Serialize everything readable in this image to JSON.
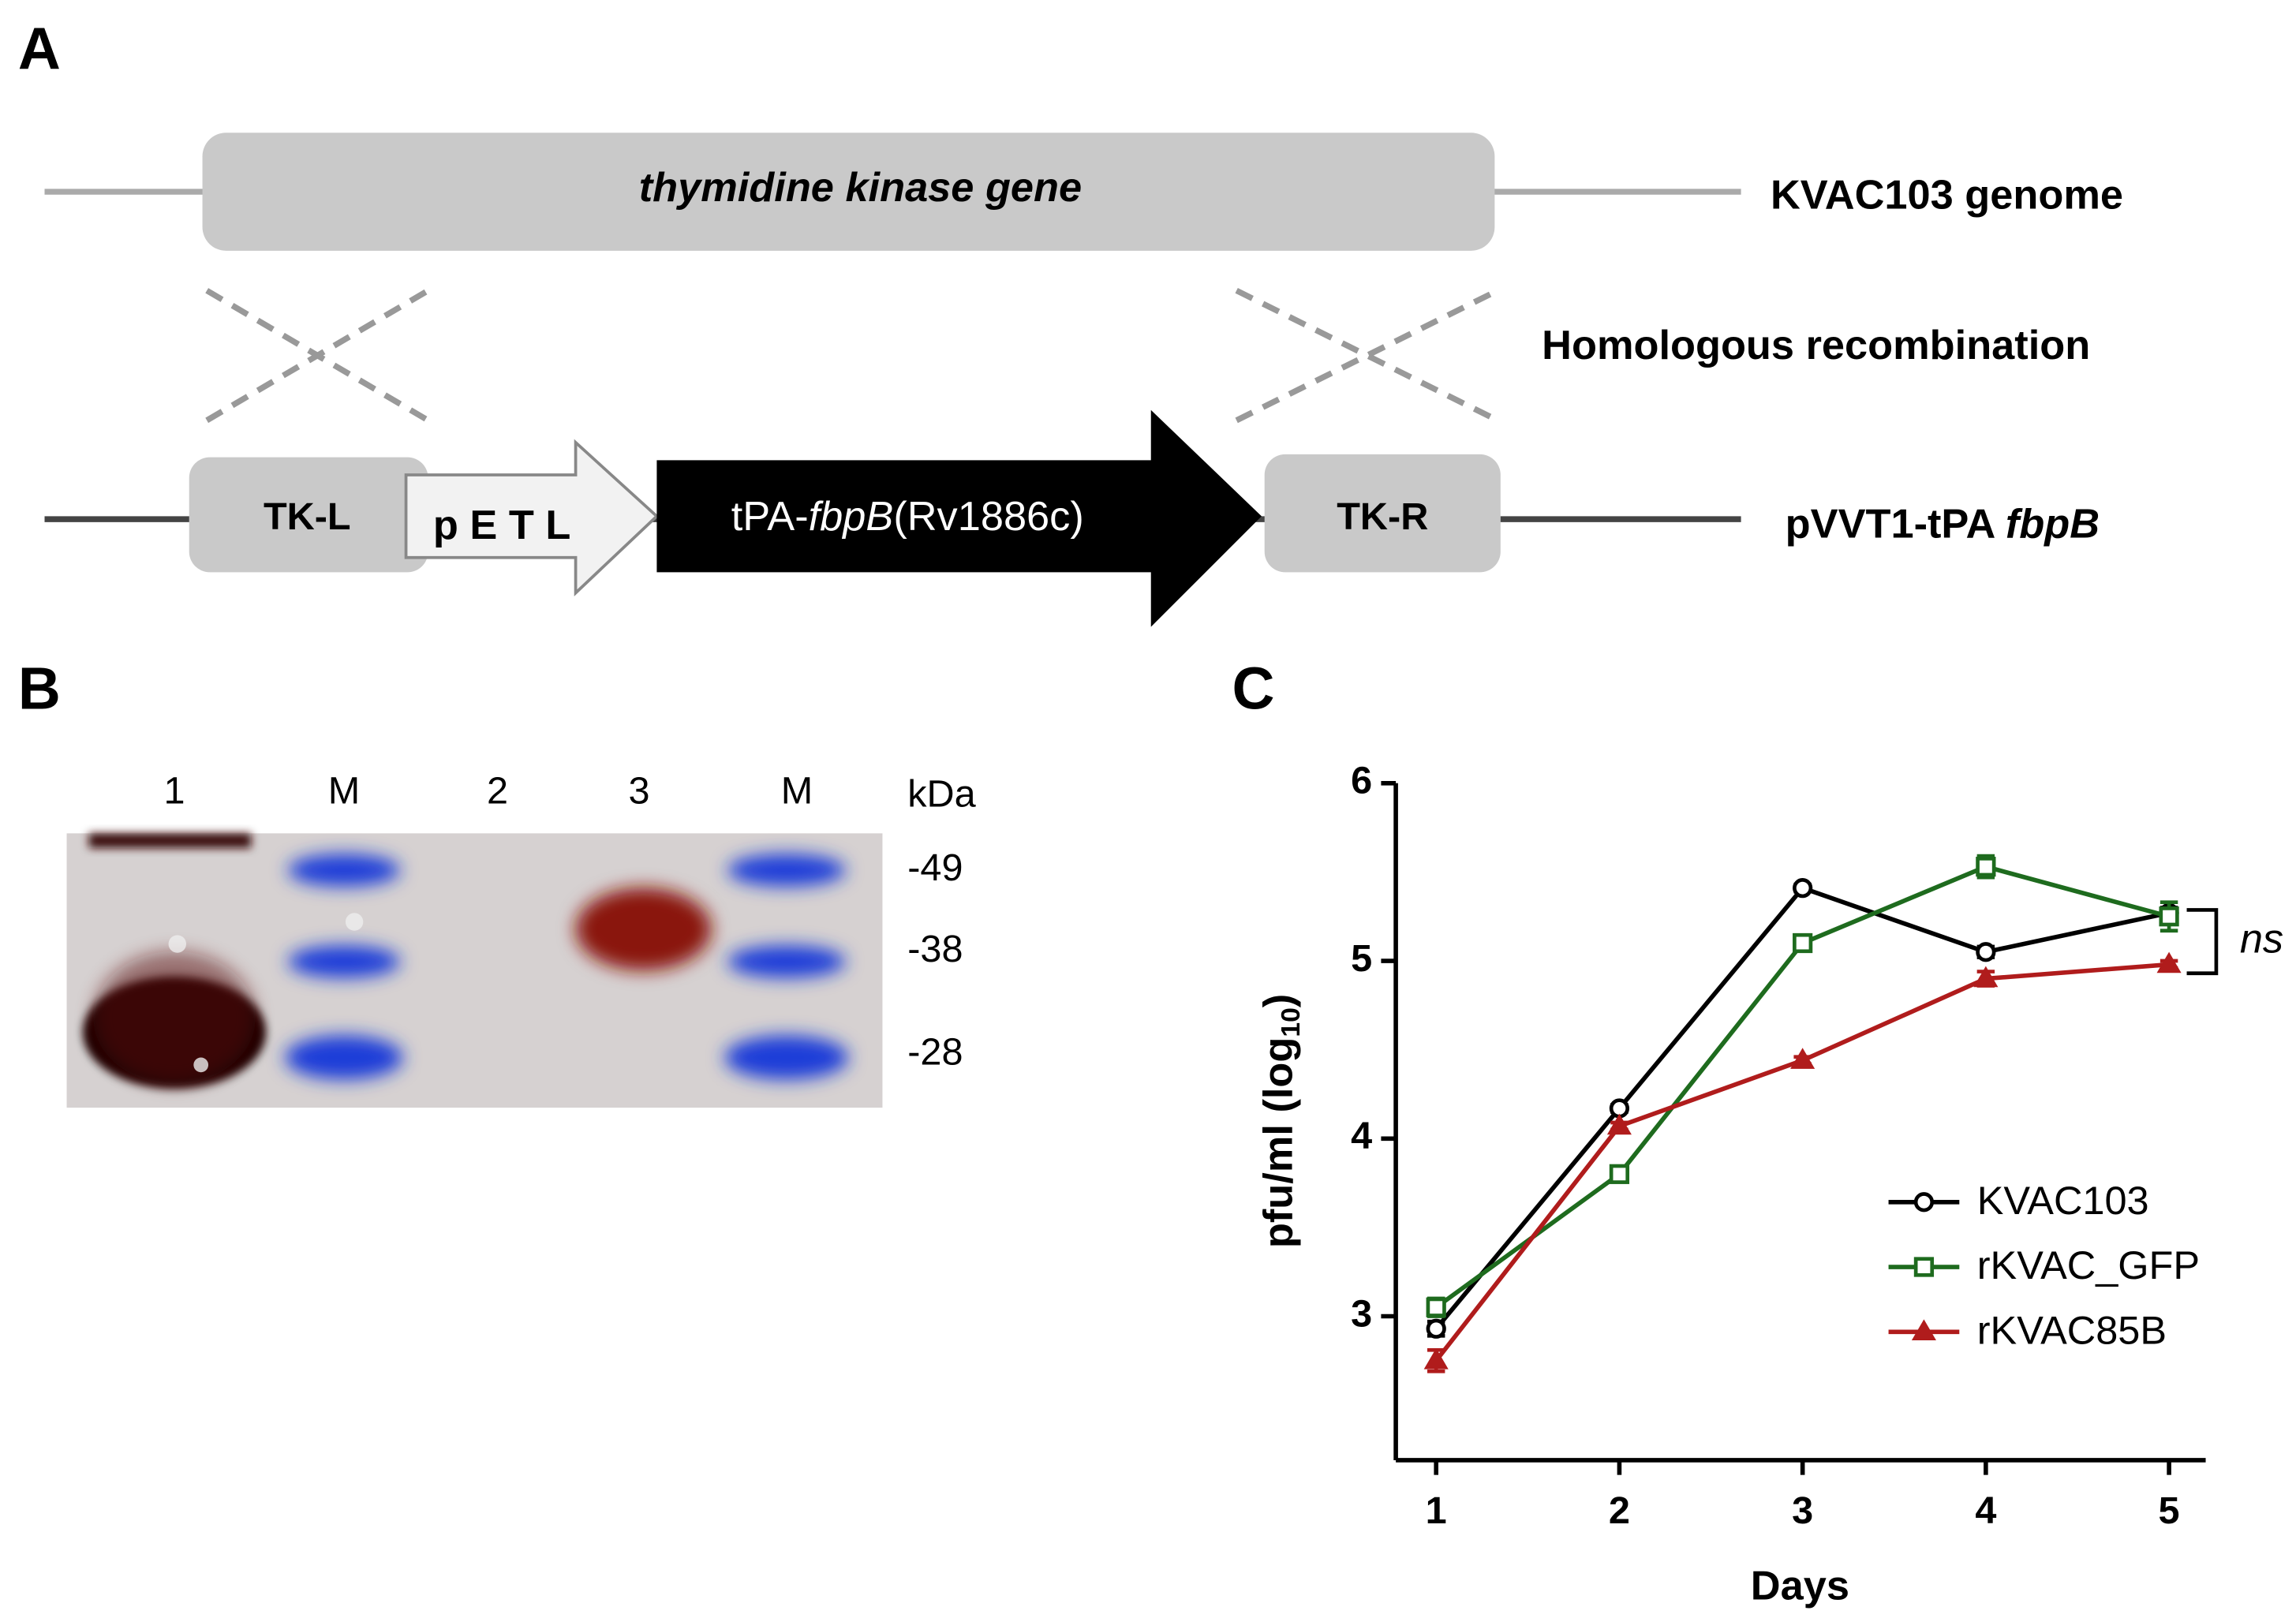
{
  "panels": [
    "A",
    "B",
    "C"
  ],
  "diagram": {
    "genome_gene": "thymidine kinase gene",
    "genome_label": "KVAC103 genome",
    "recombination_label": "Homologous recombination",
    "tk_left": "TK-L",
    "promoter": "p E T L",
    "insert_label": [
      "tPA-",
      "fbpB",
      "(Rv1886c)"
    ],
    "tk_right": "TK-R",
    "plasmid_label": [
      "pVVT1-tPA ",
      "fbpB"
    ]
  },
  "gel": {
    "lanes": [
      "1",
      "M",
      "2",
      "3",
      "M"
    ],
    "unit": "kDa",
    "markers": [
      "-49",
      "-38",
      "-28"
    ]
  },
  "chart_data": {
    "type": "line",
    "x": [
      1,
      2,
      3,
      4,
      5
    ],
    "xlim": [
      0.78,
      5.2
    ],
    "xticks": [
      1,
      2,
      3,
      4,
      5
    ],
    "ylim": [
      2.19,
      6
    ],
    "yticks": [
      3,
      4,
      5,
      6
    ],
    "x_label": "Days",
    "y_label": [
      "pfu/ml (log",
      "10",
      ")"
    ],
    "legend": "lower right",
    "series": [
      {
        "name": "KVAC103",
        "color": "#000000",
        "marker": "circle",
        "values": [
          2.93,
          4.17,
          5.41,
          5.05,
          5.27
        ],
        "errors": [
          0.04,
          0.02,
          0.02,
          0.03,
          0.03
        ]
      },
      {
        "name": "rKVAC_GFP",
        "color": "#1e6b1e",
        "marker": "square",
        "values": [
          3.05,
          3.8,
          5.1,
          5.53,
          5.25
        ],
        "errors": [
          0.05,
          0.02,
          0.02,
          0.06,
          0.08
        ]
      },
      {
        "name": "rKVAC85B",
        "color": "#b01c1c",
        "marker": "triangle",
        "values": [
          2.75,
          4.07,
          4.44,
          4.9,
          4.98
        ],
        "errors": [
          0.06,
          0.02,
          0.02,
          0.04,
          0.02
        ]
      }
    ],
    "annotation": "ns"
  }
}
